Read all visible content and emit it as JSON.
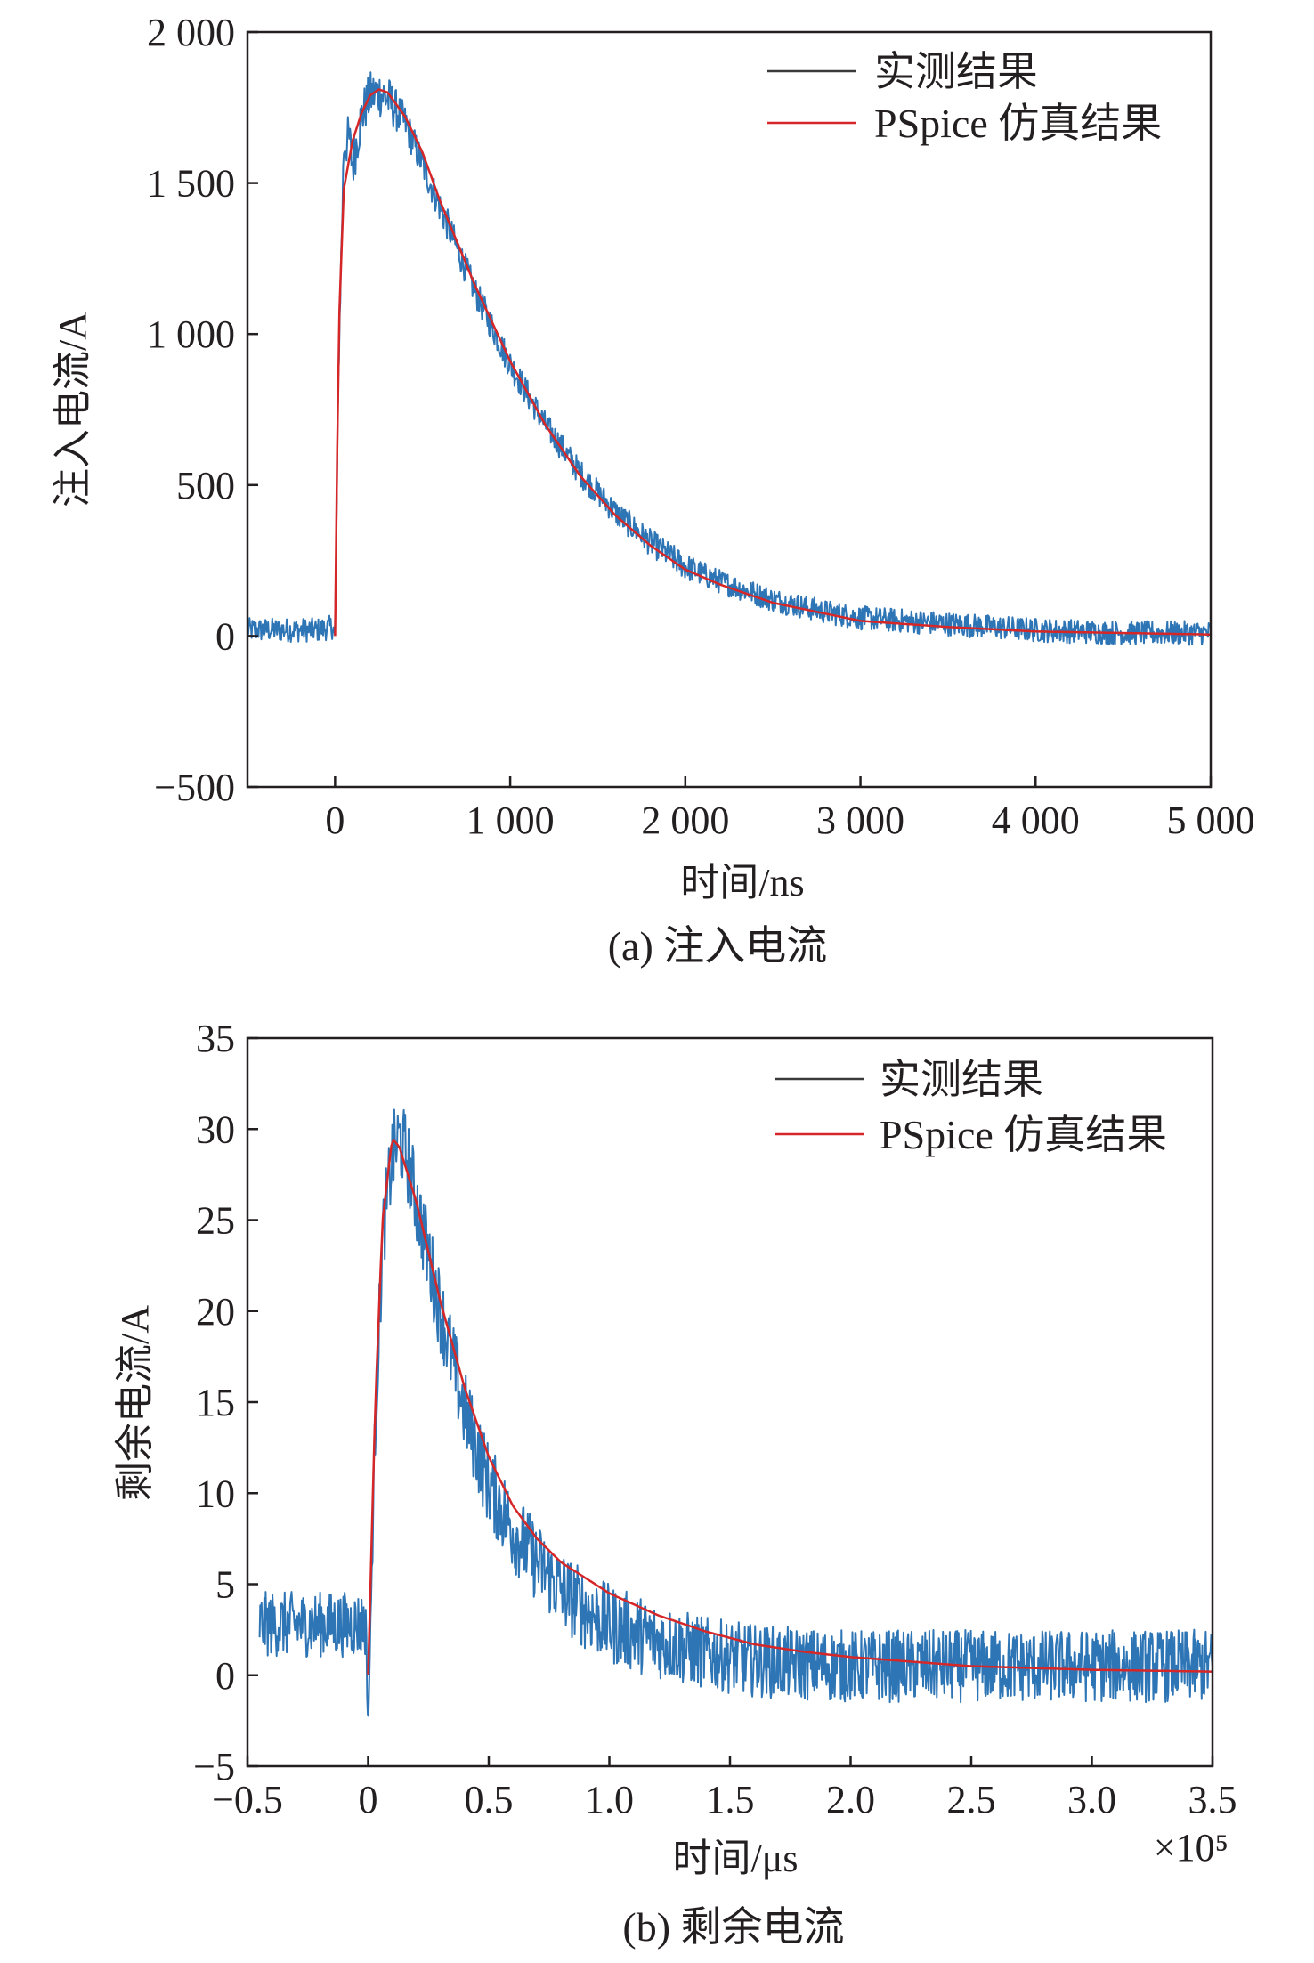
{
  "chart_data": [
    {
      "type": "line",
      "caption": "(a) 注入电流",
      "xlabel": "时间/ns",
      "ylabel": "注入电流/A",
      "xlim": [
        -500,
        5000
      ],
      "ylim": [
        -500,
        2000
      ],
      "x_ticks": [
        0,
        1000,
        2000,
        3000,
        4000,
        5000
      ],
      "x_tick_labels": [
        "0",
        "1 000",
        "2 000",
        "3 000",
        "4 000",
        "5 000"
      ],
      "y_ticks": [
        -500,
        0,
        500,
        1000,
        1500,
        2000
      ],
      "y_tick_labels": [
        "−500",
        "0",
        "500",
        "1 000",
        "1 500",
        "2 000"
      ],
      "x_multiplier_label": "",
      "legend": {
        "position": "top-right"
      },
      "grid": false,
      "series": [
        {
          "name": "实测结果",
          "color": "#2e75b6",
          "noisy": true,
          "x": [
            -500,
            -100,
            -10,
            0,
            20,
            50,
            80,
            100,
            150,
            200,
            250,
            300,
            400,
            500,
            600,
            800,
            1000,
            1200,
            1400,
            1600,
            1800,
            2000,
            2200,
            2500,
            2800,
            3000,
            3500,
            4000,
            4500,
            5000
          ],
          "y": [
            20,
            20,
            30,
            0,
            900,
            1620,
            1650,
            1560,
            1720,
            1790,
            1800,
            1780,
            1700,
            1560,
            1420,
            1140,
            900,
            700,
            540,
            410,
            310,
            230,
            180,
            120,
            80,
            60,
            40,
            20,
            10,
            10
          ],
          "noise_amp": [
            40,
            40,
            40,
            0,
            60,
            80,
            80,
            90,
            80,
            80,
            80,
            80,
            60,
            55,
            55,
            50,
            50,
            45,
            45,
            45,
            45,
            45,
            40,
            40,
            40,
            40,
            40,
            40,
            40,
            40
          ]
        },
        {
          "name": "PSpice 仿真结果",
          "color": "#d62728",
          "noisy": false,
          "x": [
            0,
            20,
            50,
            100,
            150,
            200,
            250,
            300,
            400,
            500,
            600,
            800,
            1000,
            1200,
            1400,
            1600,
            1800,
            2000,
            2200,
            2500,
            3000,
            3500,
            4000,
            4500,
            5000
          ],
          "y": [
            0,
            1000,
            1480,
            1640,
            1730,
            1790,
            1810,
            1800,
            1720,
            1600,
            1440,
            1160,
            910,
            700,
            530,
            400,
            300,
            220,
            170,
            110,
            50,
            30,
            15,
            10,
            5
          ]
        }
      ]
    },
    {
      "type": "line",
      "caption": "(b) 剩余电流",
      "xlabel": "时间/μs",
      "ylabel": "剩余电流/A",
      "xlim": [
        -0.5,
        3.5
      ],
      "ylim": [
        -5,
        35
      ],
      "x_ticks": [
        -0.5,
        0,
        0.5,
        1.0,
        1.5,
        2.0,
        2.5,
        3.0,
        3.5
      ],
      "x_tick_labels": [
        "−0.5",
        "0",
        "0.5",
        "1.0",
        "1.5",
        "2.0",
        "2.5",
        "3.0",
        "3.5"
      ],
      "y_ticks": [
        -5,
        0,
        5,
        10,
        15,
        20,
        25,
        30,
        35
      ],
      "y_tick_labels": [
        "−5",
        "0",
        "5",
        "10",
        "15",
        "20",
        "25",
        "30",
        "35"
      ],
      "x_multiplier_label": "×10⁵",
      "legend": {
        "position": "top-right"
      },
      "grid": false,
      "series": [
        {
          "name": "实测结果",
          "color": "#2e75b6",
          "noisy": true,
          "x": [
            -0.45,
            -0.2,
            -0.01,
            0.0,
            0.03,
            0.06,
            0.1,
            0.13,
            0.16,
            0.2,
            0.3,
            0.4,
            0.5,
            0.6,
            0.7,
            0.8,
            0.9,
            1.0,
            1.2,
            1.4,
            1.6,
            1.8,
            2.0,
            2.5,
            3.0,
            3.5
          ],
          "y": [
            2.8,
            2.8,
            2.8,
            -3.0,
            14,
            24,
            28.5,
            29.5,
            28.5,
            26,
            20,
            14.5,
            10.5,
            8.0,
            6.2,
            4.7,
            3.6,
            2.8,
            1.9,
            1.2,
            0.8,
            0.6,
            0.5,
            0.5,
            0.5,
            0.5
          ],
          "noise_amp": [
            1.8,
            1.8,
            1.8,
            0,
            2.0,
            2.2,
            2.3,
            2.3,
            2.3,
            2.3,
            2.3,
            2.3,
            2.3,
            2.3,
            2.2,
            2.2,
            2.2,
            2.2,
            2.1,
            2.0,
            2.0,
            2.0,
            2.0,
            2.0,
            2.0,
            2.0
          ]
        },
        {
          "name": "PSpice 仿真结果",
          "color": "#d62728",
          "noisy": false,
          "x": [
            0,
            0.03,
            0.06,
            0.1,
            0.13,
            0.2,
            0.3,
            0.4,
            0.5,
            0.6,
            0.7,
            0.8,
            1.0,
            1.2,
            1.4,
            1.6,
            1.8,
            2.0,
            2.5,
            3.0,
            3.5
          ],
          "y": [
            0,
            15,
            25,
            29.5,
            29,
            26,
            20.5,
            15.8,
            12,
            9.3,
            7.5,
            6.2,
            4.5,
            3.3,
            2.4,
            1.7,
            1.3,
            1.0,
            0.5,
            0.3,
            0.2
          ]
        }
      ]
    }
  ]
}
